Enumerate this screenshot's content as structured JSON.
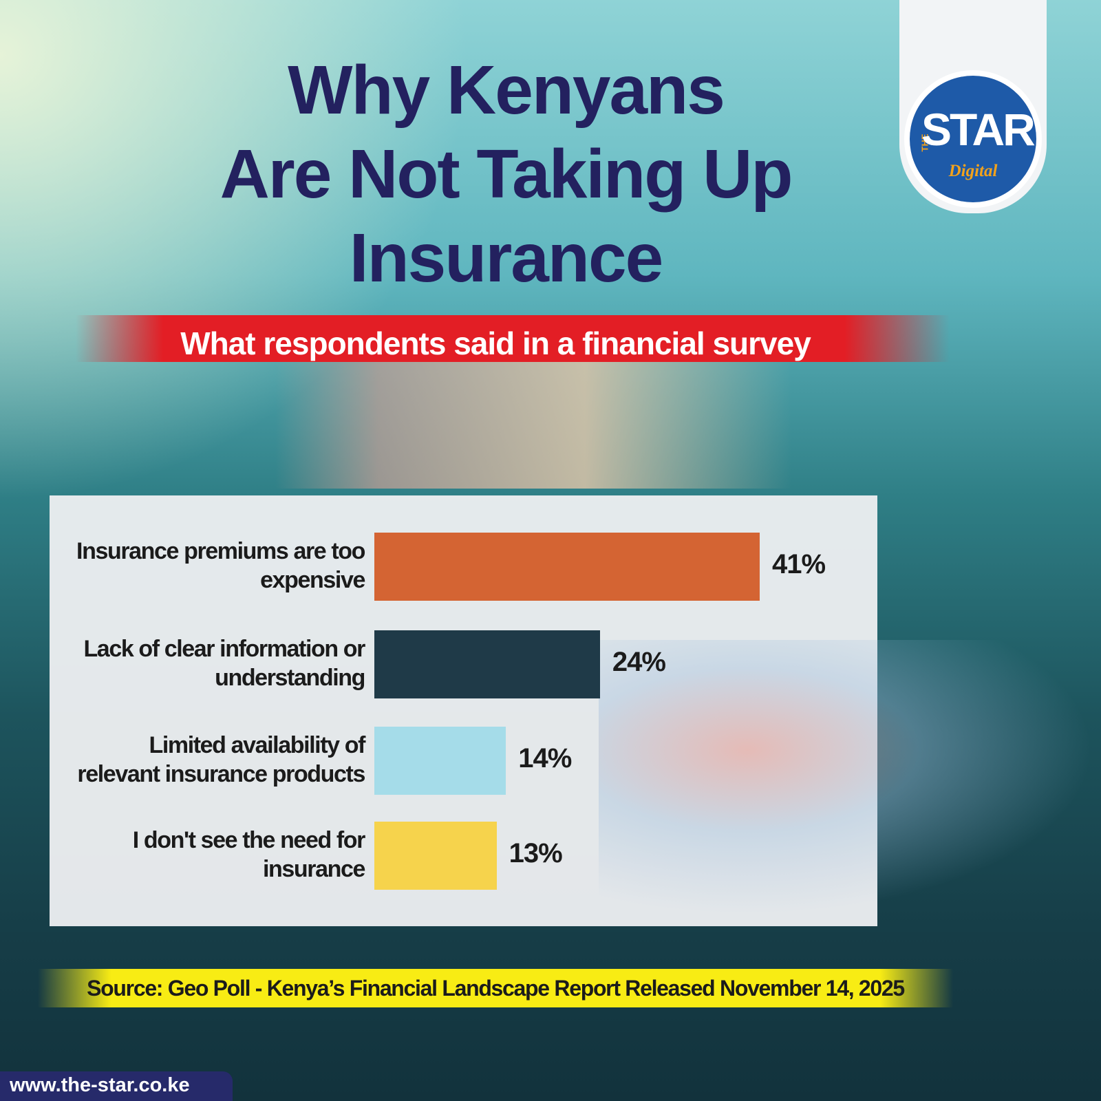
{
  "chart_data": {
    "type": "bar",
    "orientation": "horizontal",
    "title": [
      "Why Kenyans",
      "Are Not Taking Up",
      "Insurance"
    ],
    "subtitle": "What respondents said in a financial survey",
    "categories": [
      "Insurance premiums are too expensive",
      "Lack of clear information or understanding",
      "Limited availability of relevant insurance products",
      "I don't see the need for insurance"
    ],
    "values": [
      41,
      24,
      14,
      13
    ],
    "value_labels": [
      "41%",
      "24%",
      "14%",
      "13%"
    ],
    "colors": [
      "#d46433",
      "#1f3a48",
      "#a5dce9",
      "#f6d34c"
    ],
    "source": "Source: Geo Poll - Kenya’s Financial Landscape Report Released November 14, 2025"
  },
  "branding": {
    "logo": {
      "prefix": "THE",
      "name": "STAR",
      "suffix": "Digital"
    },
    "website": "www.the-star.co.ke"
  }
}
